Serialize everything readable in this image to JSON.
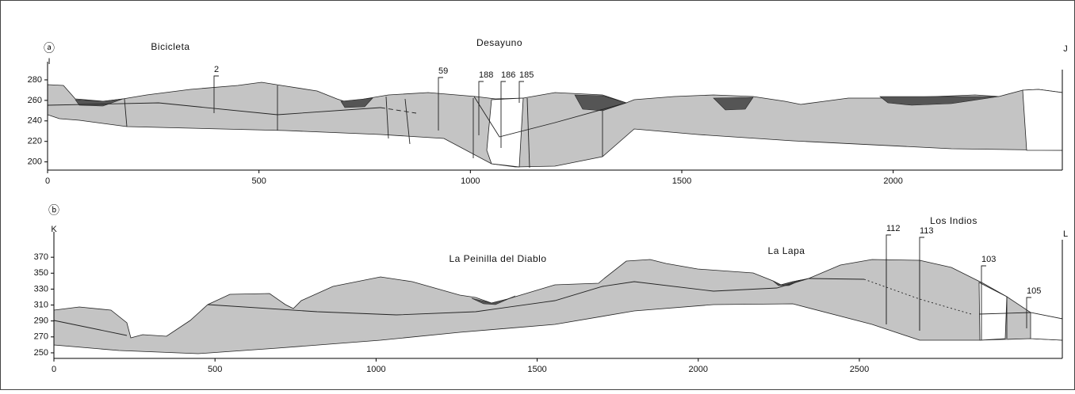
{
  "chart_data": [
    {
      "type": "cross-section",
      "panel": "ⓐ",
      "start": "I",
      "end": "J",
      "xlim": [
        0,
        2400
      ],
      "ylim": [
        192,
        290
      ],
      "xticks": [
        0,
        500,
        1000,
        1500,
        2000
      ],
      "yticks": [
        200,
        220,
        240,
        260,
        280
      ],
      "places": [
        "Bicicleta",
        "Desayuno"
      ],
      "boreholes": [
        "2",
        "59",
        "188",
        "186",
        "185"
      ]
    },
    {
      "type": "cross-section",
      "panel": "ⓑ",
      "start": "K",
      "end": "L",
      "xlim": [
        0,
        3130
      ],
      "ylim": [
        243,
        392
      ],
      "xticks": [
        0,
        500,
        1000,
        1500,
        2000,
        2500
      ],
      "yticks": [
        250,
        270,
        290,
        310,
        330,
        350,
        370
      ],
      "places": [
        "La Peinilla del Diablo",
        "La Lapa",
        "Los Indios"
      ],
      "boreholes": [
        "112",
        "113",
        "103",
        "105"
      ]
    }
  ]
}
